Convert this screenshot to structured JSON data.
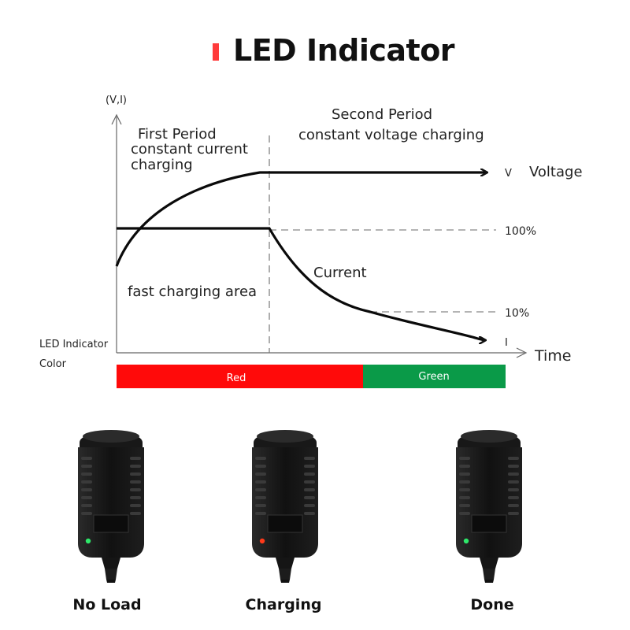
{
  "header": {
    "title": "LED Indicator",
    "accent_color": "#ff3b3b"
  },
  "diagram": {
    "y_axis_label": "(V,I)",
    "x_axis_label": "Time",
    "first_period_line1": "First  Period",
    "first_period_line2": "constant current",
    "first_period_line3": "charging",
    "second_period_line1": "Second Period",
    "second_period_line2": "constant voltage charging",
    "voltage_symbol": "V",
    "voltage_label": "Voltage",
    "current_label": "Current",
    "current_symbol": "I",
    "fast_area_label": "fast charging area",
    "level_100": "100%",
    "level_10": "10%",
    "led_row_label_line1": "LED Indicator",
    "led_row_label_line2": "Color",
    "red_band_label": "Red",
    "green_band_label": "Green",
    "red_color": "#ff0a0a",
    "green_color": "#0a9a48"
  },
  "adapters": [
    {
      "label": "No Load",
      "led_color": "#2ee86a"
    },
    {
      "label": "Charging",
      "led_color": "#ff3a1a"
    },
    {
      "label": "Done",
      "led_color": "#2ee86a"
    }
  ]
}
